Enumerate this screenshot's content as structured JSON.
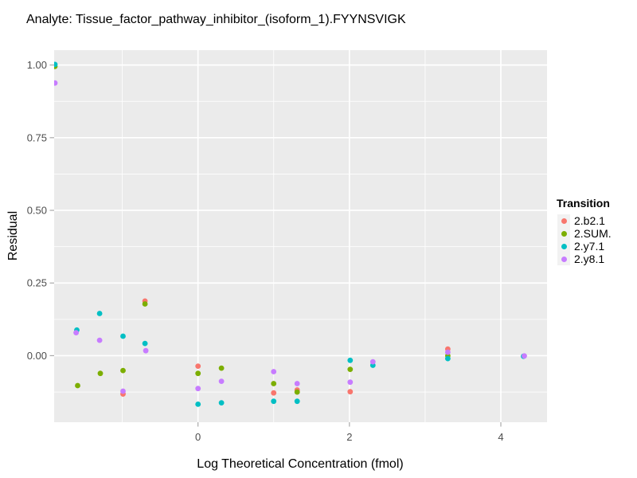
{
  "chart_data": {
    "type": "scatter",
    "title": "Analyte: Tissue_factor_pathway_inhibitor_(isoform_1).FYYNSVIGK",
    "xlabel": "Log Theoretical Concentration (fmol)",
    "ylabel": "Residual",
    "legend_title": "Transition",
    "legend_position": "right",
    "panel_background": "#EBEBEB",
    "gridline_color": "#FFFFFF",
    "tick_color": "#AAAAAA",
    "tick_label_color": "#4D4D4D",
    "legend_key_background": "#F2F2F2",
    "xlim": [
      -1.9,
      4.61
    ],
    "ylim": [
      -0.229,
      1.051
    ],
    "x_ticks": {
      "values": [
        0,
        2,
        4
      ],
      "labels": [
        "0",
        "2",
        "4"
      ]
    },
    "y_ticks": {
      "values": [
        0,
        0.25,
        0.5,
        0.75,
        1.0
      ],
      "labels": [
        "0.00",
        "0.25",
        "0.50",
        "0.75",
        "1.00"
      ]
    },
    "x_minor_gridlines": [
      -1,
      1,
      3
    ],
    "y_minor_gridlines": [
      -0.125,
      0.125,
      0.375,
      0.625,
      0.875
    ],
    "point_radius_px": 3.4,
    "series": [
      {
        "name": "2.b2.1",
        "color": "#F8766D",
        "points": [
          [
            -0.99,
            -0.132
          ],
          [
            -0.7,
            0.188
          ],
          [
            0.0,
            -0.036
          ],
          [
            1.0,
            -0.128
          ],
          [
            1.31,
            -0.118
          ],
          [
            2.01,
            -0.124
          ],
          [
            3.3,
            0.023
          ]
        ]
      },
      {
        "name": "2.SUM.",
        "color": "#7CAE00",
        "points": [
          [
            -1.89,
            0.995
          ],
          [
            -1.59,
            -0.103
          ],
          [
            -1.29,
            -0.061
          ],
          [
            -0.99,
            -0.051
          ],
          [
            -0.7,
            0.178
          ],
          [
            0.0,
            -0.061
          ],
          [
            0.31,
            -0.043
          ],
          [
            1.0,
            -0.096
          ],
          [
            1.31,
            -0.125
          ],
          [
            2.01,
            -0.047
          ],
          [
            3.3,
            0.0
          ]
        ]
      },
      {
        "name": "2.y7.1",
        "color": "#00BFC4",
        "points": [
          [
            -1.89,
            1.002
          ],
          [
            -1.6,
            0.088
          ],
          [
            -1.3,
            0.145
          ],
          [
            -0.99,
            0.067
          ],
          [
            -0.7,
            0.042
          ],
          [
            0.0,
            -0.167
          ],
          [
            0.31,
            -0.162
          ],
          [
            1.0,
            -0.157
          ],
          [
            1.31,
            -0.157
          ],
          [
            2.01,
            -0.016
          ],
          [
            2.31,
            -0.033
          ],
          [
            3.3,
            -0.01
          ],
          [
            4.3,
            -0.002
          ]
        ]
      },
      {
        "name": "2.y8.1",
        "color": "#C77CFF",
        "points": [
          [
            -1.89,
            0.938
          ],
          [
            -1.61,
            0.079
          ],
          [
            -1.3,
            0.053
          ],
          [
            -0.99,
            -0.122
          ],
          [
            -0.69,
            0.017
          ],
          [
            0.0,
            -0.113
          ],
          [
            0.31,
            -0.088
          ],
          [
            1.0,
            -0.055
          ],
          [
            1.31,
            -0.096
          ],
          [
            2.01,
            -0.091
          ],
          [
            2.31,
            -0.021
          ],
          [
            3.3,
            0.012
          ],
          [
            4.31,
            -0.001
          ]
        ]
      }
    ]
  }
}
